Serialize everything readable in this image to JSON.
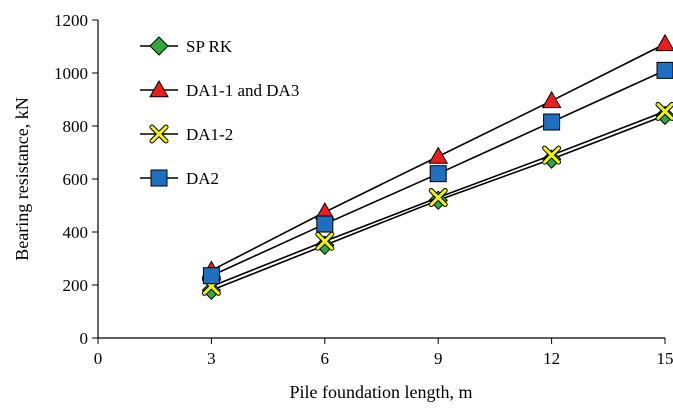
{
  "chart_data": {
    "type": "line",
    "xlabel": "Pile foundation length, m",
    "ylabel": "Bearing resistance, kN",
    "xlim": [
      0,
      15
    ],
    "ylim": [
      0,
      1200
    ],
    "xticks": [
      0,
      3,
      6,
      9,
      12,
      15
    ],
    "yticks": [
      0,
      200,
      400,
      600,
      800,
      1000,
      1200
    ],
    "grid": false,
    "legend_position": "top-left",
    "series": [
      {
        "name": "SP RK",
        "marker": "diamond",
        "color": "#2eaa3c",
        "x": [
          3,
          6,
          9,
          12,
          15
        ],
        "y": [
          180,
          350,
          520,
          675,
          840
        ]
      },
      {
        "name": "DA1-1 and DA3",
        "marker": "triangle",
        "color": "#ee1c1c",
        "x": [
          3,
          6,
          9,
          12,
          15
        ],
        "y": [
          255,
          475,
          685,
          895,
          1110
        ]
      },
      {
        "name": "DA1-2",
        "marker": "x",
        "color": "#f2f20a",
        "x": [
          3,
          6,
          9,
          12,
          15
        ],
        "y": [
          195,
          365,
          530,
          690,
          855
        ]
      },
      {
        "name": "DA2",
        "marker": "square",
        "color": "#1f6fc0",
        "x": [
          3,
          6,
          9,
          12,
          15
        ],
        "y": [
          235,
          430,
          620,
          815,
          1010
        ]
      }
    ]
  }
}
